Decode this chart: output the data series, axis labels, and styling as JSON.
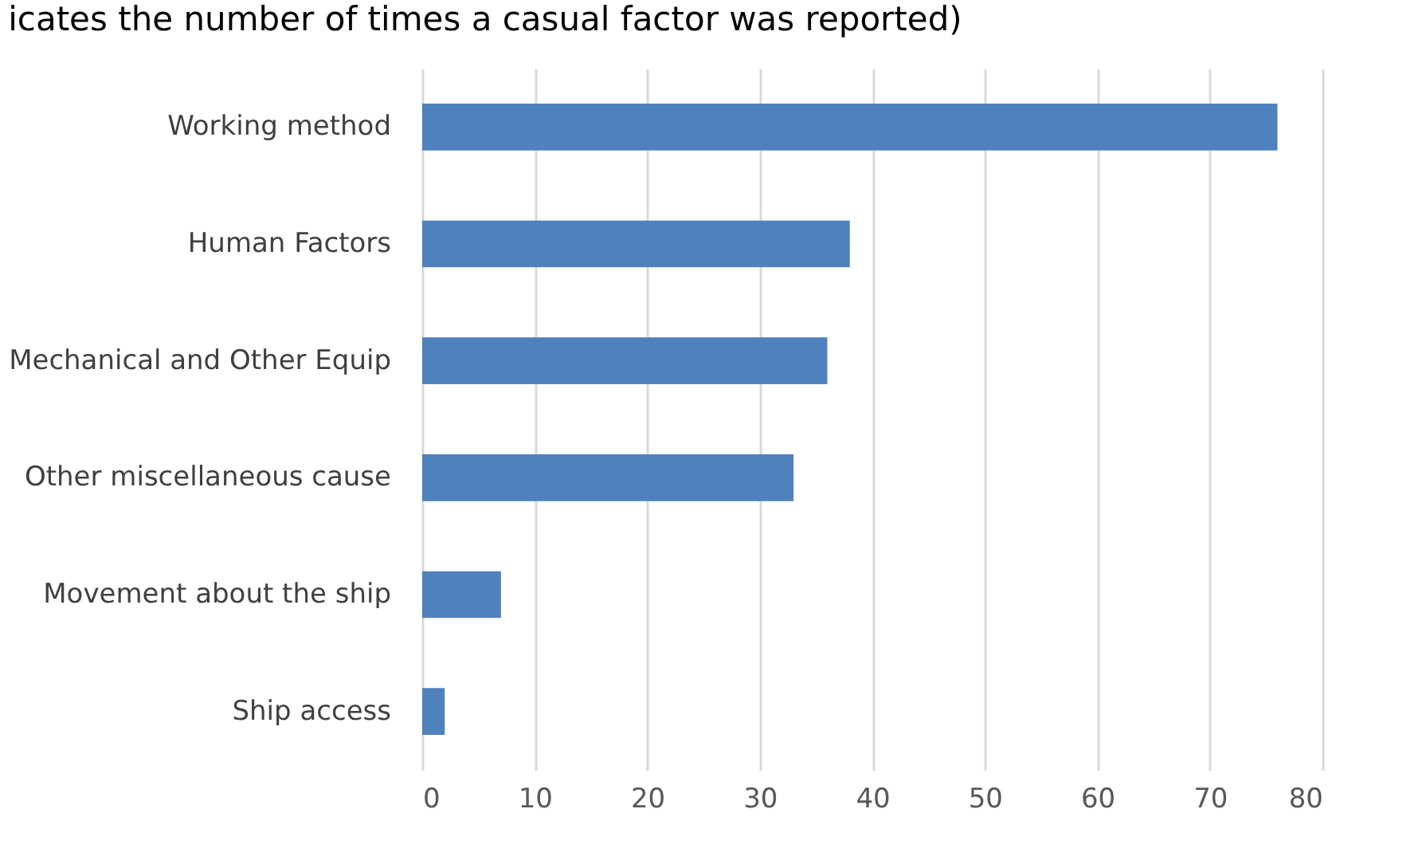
{
  "chart_data": {
    "type": "bar",
    "orientation": "horizontal",
    "title": "icates the number of times a casual factor was reported)",
    "categories": [
      "Working method",
      "Human Factors",
      "Mechanical and Other Equip",
      "Other miscellaneous cause",
      "Movement about the ship",
      "Ship access"
    ],
    "values": [
      76,
      38,
      36,
      33,
      7,
      2
    ],
    "color": "#4f81bd",
    "xlim": [
      0,
      80
    ],
    "xticks": [
      0,
      10,
      20,
      30,
      40,
      50,
      60,
      70,
      80
    ],
    "grid": "x"
  }
}
